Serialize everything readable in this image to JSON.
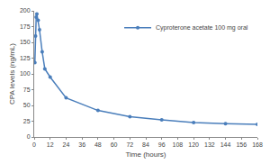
{
  "chart_data": {
    "type": "line",
    "x_label": "Time (hours)",
    "y_label": "CPA levels (ng/mL)",
    "x": [
      0.5,
      1,
      1.5,
      2,
      3,
      4,
      6,
      8,
      12,
      24,
      48,
      72,
      96,
      120,
      144,
      168
    ],
    "series": [
      {
        "name": "Cyproterone acetate 100 mg oral",
        "color": "#4a7ebb",
        "marker": "circle",
        "values": [
          118,
          160,
          190,
          195,
          185,
          170,
          135,
          108,
          95,
          62,
          42,
          32,
          27,
          23,
          21,
          20
        ]
      }
    ],
    "xlim": [
      0,
      168
    ],
    "xticks": [
      0,
      12,
      24,
      36,
      48,
      60,
      72,
      84,
      96,
      108,
      120,
      132,
      144,
      156,
      168
    ],
    "ylim": [
      0,
      200
    ],
    "yticks": [
      0,
      25,
      50,
      75,
      100,
      125,
      150,
      175,
      200
    ],
    "grid": false,
    "legend": "upper right"
  }
}
